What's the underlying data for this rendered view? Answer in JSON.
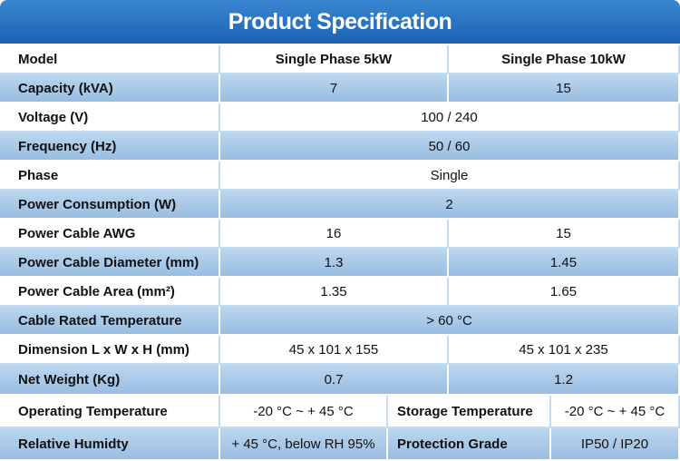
{
  "title": "Product Specification",
  "table": {
    "header": [
      "Model",
      "Single Phase 5kW",
      "Single Phase 10kW"
    ],
    "rows": [
      [
        "Capacity (kVA)",
        "7",
        "15"
      ],
      [
        "Voltage (V)",
        "100 / 240"
      ],
      [
        "Frequency (Hz)",
        "50 / 60"
      ],
      [
        "Phase",
        "Single"
      ],
      [
        "Power Consumption (W)",
        "2"
      ],
      [
        "Power Cable AWG",
        "16",
        "15"
      ],
      [
        "Power Cable Diameter (mm)",
        "1.3",
        "1.45"
      ],
      [
        "Power Cable Area (mm²)",
        "1.35",
        "1.65"
      ],
      [
        "Cable Rated Temperature",
        "> 60 °C"
      ],
      [
        "Dimension L x W x H (mm)",
        "45 x 101 x 155",
        "45 x 101 x 235"
      ],
      [
        "Net Weight (Kg)",
        "0.7",
        "1.2"
      ],
      [
        "Operating Temperature",
        "-20 °C ~ + 45 °C",
        "Storage Temperature",
        "-20 °C ~ + 45 °C"
      ],
      [
        "Relative Humidty",
        "+ 45 °C, below RH 95%",
        "Protection Grade",
        "IP50 / IP20"
      ]
    ]
  }
}
